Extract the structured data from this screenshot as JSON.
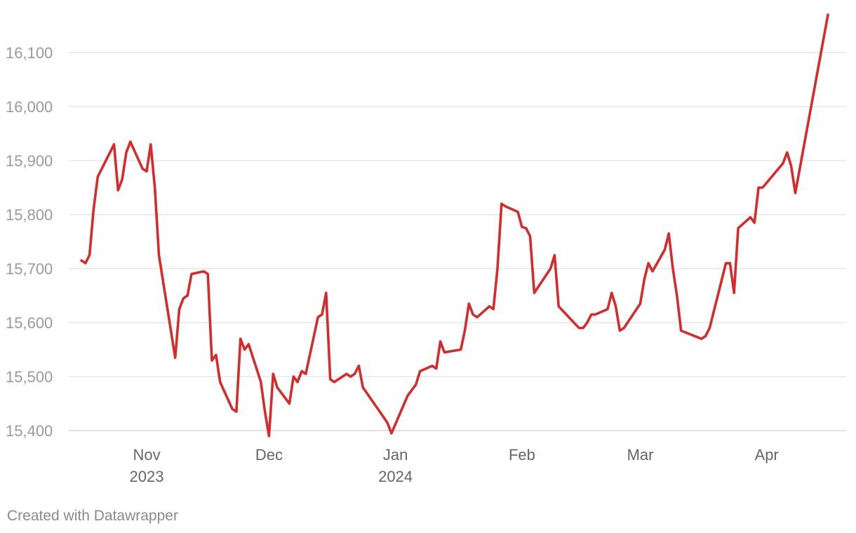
{
  "chart_data": {
    "type": "line",
    "title": "",
    "xlabel": "",
    "ylabel": "",
    "ylim": [
      15380,
      16180
    ],
    "xlim": [
      "2023-10-13",
      "2024-04-18"
    ],
    "grid": true,
    "line_color": "#d62b2b",
    "y_ticks": [
      15400,
      15500,
      15600,
      15700,
      15800,
      15900,
      16000,
      16100
    ],
    "y_tick_labels": [
      "15,400",
      "15,500",
      "15,600",
      "15,700",
      "15,800",
      "15,900",
      "16,000",
      "16,100"
    ],
    "x_ticks": [
      {
        "date": "2023-11-01",
        "label": "Nov",
        "sublabel": "2023"
      },
      {
        "date": "2023-12-01",
        "label": "Dec",
        "sublabel": ""
      },
      {
        "date": "2024-01-01",
        "label": "Jan",
        "sublabel": "2024"
      },
      {
        "date": "2024-02-01",
        "label": "Feb",
        "sublabel": ""
      },
      {
        "date": "2024-03-01",
        "label": "Mar",
        "sublabel": ""
      },
      {
        "date": "2024-04-01",
        "label": "Apr",
        "sublabel": ""
      }
    ],
    "series": [
      {
        "points": [
          [
            "2023-10-16",
            15715
          ],
          [
            "2023-10-17",
            15710
          ],
          [
            "2023-10-18",
            15725
          ],
          [
            "2023-10-19",
            15810
          ],
          [
            "2023-10-20",
            15870
          ],
          [
            "2023-10-24",
            15930
          ],
          [
            "2023-10-25",
            15845
          ],
          [
            "2023-10-26",
            15865
          ],
          [
            "2023-10-27",
            15915
          ],
          [
            "2023-10-28",
            15935
          ],
          [
            "2023-10-31",
            15885
          ],
          [
            "2023-11-01",
            15880
          ],
          [
            "2023-11-02",
            15930
          ],
          [
            "2023-11-03",
            15850
          ],
          [
            "2023-11-04",
            15725
          ],
          [
            "2023-11-08",
            15535
          ],
          [
            "2023-11-09",
            15625
          ],
          [
            "2023-11-10",
            15645
          ],
          [
            "2023-11-11",
            15650
          ],
          [
            "2023-11-12",
            15690
          ],
          [
            "2023-11-15",
            15695
          ],
          [
            "2023-11-16",
            15690
          ],
          [
            "2023-11-17",
            15530
          ],
          [
            "2023-11-18",
            15540
          ],
          [
            "2023-11-19",
            15490
          ],
          [
            "2023-11-22",
            15440
          ],
          [
            "2023-11-23",
            15435
          ],
          [
            "2023-11-24",
            15570
          ],
          [
            "2023-11-25",
            15550
          ],
          [
            "2023-11-26",
            15560
          ],
          [
            "2023-11-29",
            15490
          ],
          [
            "2023-11-30",
            15435
          ],
          [
            "2023-12-01",
            15390
          ],
          [
            "2023-12-02",
            15505
          ],
          [
            "2023-12-03",
            15480
          ],
          [
            "2023-12-06",
            15450
          ],
          [
            "2023-12-07",
            15500
          ],
          [
            "2023-12-08",
            15490
          ],
          [
            "2023-12-09",
            15510
          ],
          [
            "2023-12-10",
            15505
          ],
          [
            "2023-12-13",
            15610
          ],
          [
            "2023-12-14",
            15615
          ],
          [
            "2023-12-15",
            15655
          ],
          [
            "2023-12-16",
            15495
          ],
          [
            "2023-12-17",
            15490
          ],
          [
            "2023-12-20",
            15505
          ],
          [
            "2023-12-21",
            15500
          ],
          [
            "2023-12-22",
            15505
          ],
          [
            "2023-12-23",
            15520
          ],
          [
            "2023-12-24",
            15480
          ],
          [
            "2023-12-30",
            15415
          ],
          [
            "2023-12-31",
            15395
          ],
          [
            "2024-01-04",
            15465
          ],
          [
            "2024-01-06",
            15485
          ],
          [
            "2024-01-07",
            15510
          ],
          [
            "2024-01-10",
            15520
          ],
          [
            "2024-01-11",
            15515
          ],
          [
            "2024-01-12",
            15565
          ],
          [
            "2024-01-13",
            15545
          ],
          [
            "2024-01-17",
            15550
          ],
          [
            "2024-01-18",
            15585
          ],
          [
            "2024-01-19",
            15635
          ],
          [
            "2024-01-20",
            15615
          ],
          [
            "2024-01-21",
            15610
          ],
          [
            "2024-01-24",
            15630
          ],
          [
            "2024-01-25",
            15625
          ],
          [
            "2024-01-26",
            15700
          ],
          [
            "2024-01-27",
            15820
          ],
          [
            "2024-01-28",
            15815
          ],
          [
            "2024-01-31",
            15805
          ],
          [
            "2024-02-01",
            15777
          ],
          [
            "2024-02-02",
            15775
          ],
          [
            "2024-02-03",
            15760
          ],
          [
            "2024-02-04",
            15655
          ],
          [
            "2024-02-08",
            15700
          ],
          [
            "2024-02-09",
            15725
          ],
          [
            "2024-02-10",
            15630
          ],
          [
            "2024-02-15",
            15590
          ],
          [
            "2024-02-16",
            15590
          ],
          [
            "2024-02-17",
            15600
          ],
          [
            "2024-02-18",
            15615
          ],
          [
            "2024-02-19",
            15615
          ],
          [
            "2024-02-22",
            15625
          ],
          [
            "2024-02-23",
            15655
          ],
          [
            "2024-02-24",
            15630
          ],
          [
            "2024-02-25",
            15585
          ],
          [
            "2024-02-26",
            15590
          ],
          [
            "2024-03-01",
            15635
          ],
          [
            "2024-03-02",
            15680
          ],
          [
            "2024-03-03",
            15710
          ],
          [
            "2024-03-04",
            15695
          ],
          [
            "2024-03-07",
            15735
          ],
          [
            "2024-03-08",
            15765
          ],
          [
            "2024-03-09",
            15700
          ],
          [
            "2024-03-10",
            15650
          ],
          [
            "2024-03-11",
            15585
          ],
          [
            "2024-03-16",
            15570
          ],
          [
            "2024-03-17",
            15575
          ],
          [
            "2024-03-18",
            15590
          ],
          [
            "2024-03-21",
            15680
          ],
          [
            "2024-03-22",
            15710
          ],
          [
            "2024-03-23",
            15710
          ],
          [
            "2024-03-24",
            15655
          ],
          [
            "2024-03-25",
            15775
          ],
          [
            "2024-03-28",
            15795
          ],
          [
            "2024-03-29",
            15785
          ],
          [
            "2024-03-30",
            15850
          ],
          [
            "2024-03-31",
            15850
          ],
          [
            "2024-04-05",
            15895
          ],
          [
            "2024-04-06",
            15915
          ],
          [
            "2024-04-07",
            15890
          ],
          [
            "2024-04-08",
            15840
          ],
          [
            "2024-04-16",
            16170
          ]
        ]
      }
    ]
  },
  "footer": {
    "credit": "Created with Datawrapper"
  }
}
